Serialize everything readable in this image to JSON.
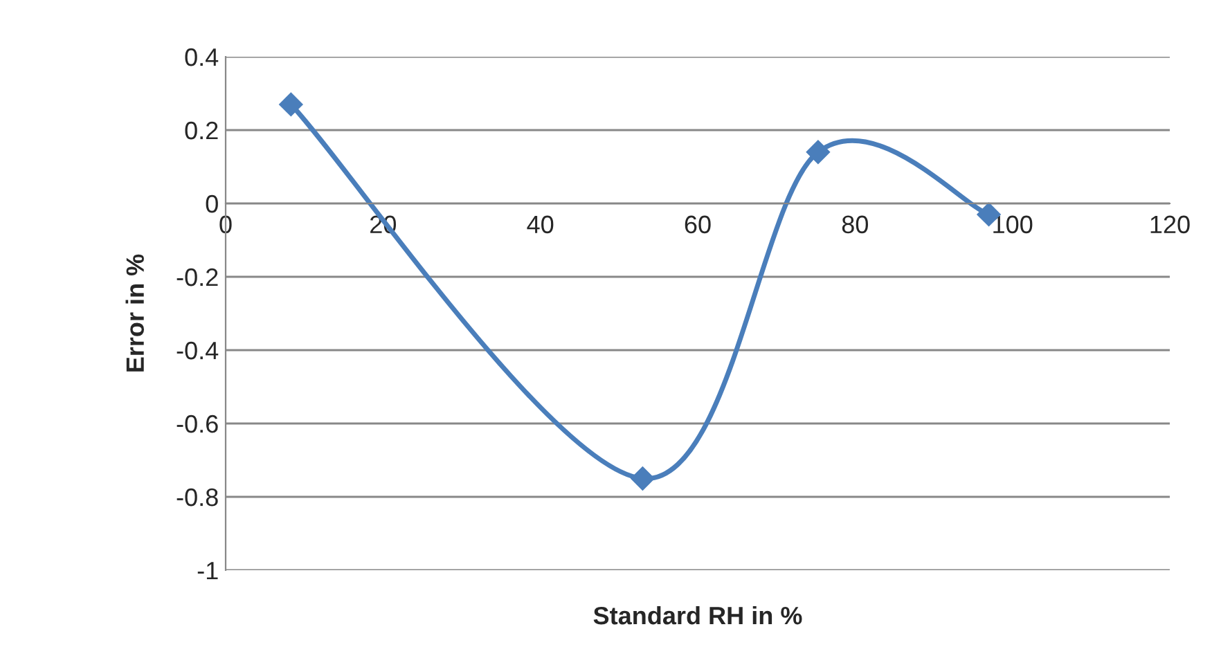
{
  "chart_data": {
    "type": "line",
    "xlabel": "Standard RH in %",
    "ylabel": "Error in %",
    "series": [
      {
        "color": "#4a7ebb",
        "x": [
          8.3,
          53,
          75.3,
          97
        ],
        "values": [
          0.27,
          -0.75,
          0.14,
          -0.03
        ]
      }
    ],
    "xlim": [
      0,
      120
    ],
    "xticks": [
      0,
      20,
      40,
      60,
      80,
      100,
      120
    ],
    "ylim": [
      -1,
      0.4
    ],
    "yticks": [
      -1,
      -0.8,
      -0.6,
      -0.4,
      -0.2,
      0,
      0.2,
      0.4
    ],
    "grid": "y",
    "marker": "diamond",
    "line_style": "solid"
  }
}
